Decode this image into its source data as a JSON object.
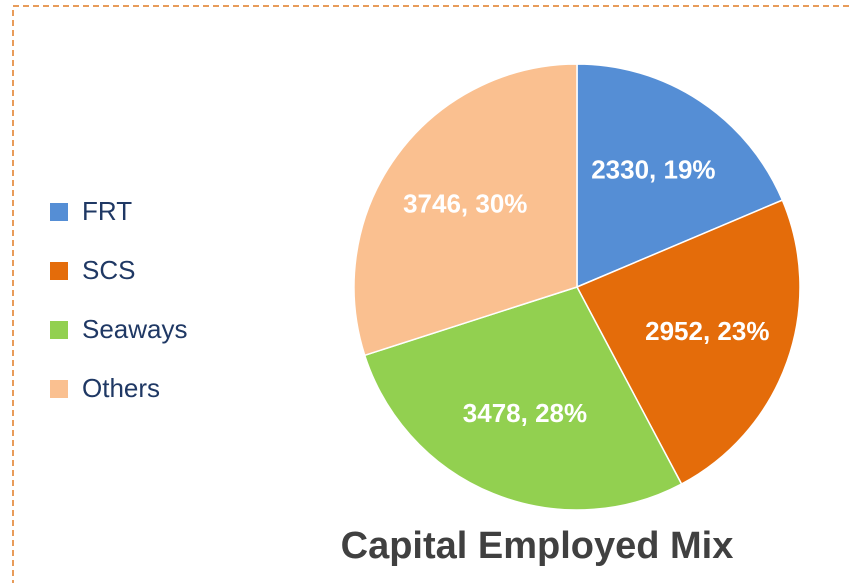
{
  "chart_data": {
    "type": "pie",
    "title": "Capital Employed Mix",
    "categories": [
      "FRT",
      "SCS",
      "Seaways",
      "Others"
    ],
    "values": [
      2330,
      2952,
      3478,
      3746
    ],
    "value_labels": [
      "2330, 19%",
      "2952, 23%",
      "3478, 28%",
      "3746, 30%"
    ],
    "colors": [
      "#558ed5",
      "#e46c0a",
      "#92d050",
      "#fac090"
    ],
    "legend": "left"
  }
}
